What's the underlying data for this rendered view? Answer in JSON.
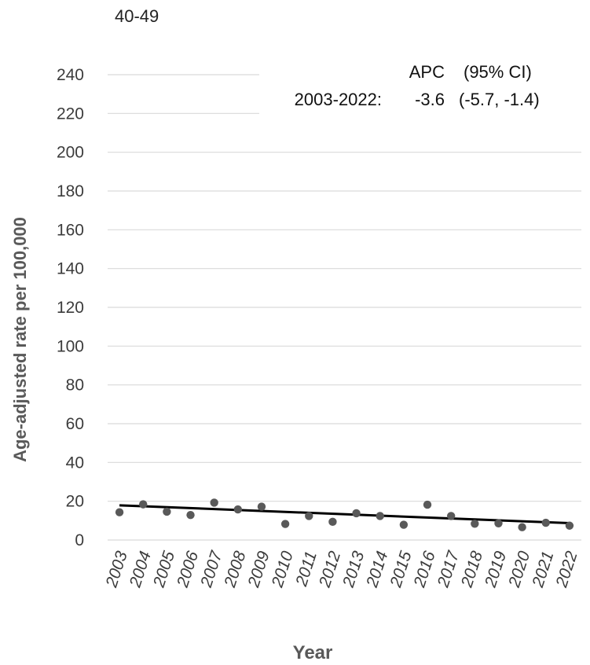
{
  "panel_label": "40-49",
  "chart_data": {
    "type": "scatter",
    "ylabel": "Age-adjusted rate per 100,000",
    "xlabel": "Year",
    "ylim": [
      0,
      240
    ],
    "yticks": [
      0,
      20,
      40,
      60,
      80,
      100,
      120,
      140,
      160,
      180,
      200,
      220,
      240
    ],
    "grid": true,
    "x": [
      "2003",
      "2004",
      "2005",
      "2006",
      "2007",
      "2008",
      "2009",
      "2010",
      "2011",
      "2012",
      "2013",
      "2014",
      "2015",
      "2016",
      "2017",
      "2018",
      "2019",
      "2020",
      "2021",
      "2022"
    ],
    "series": [
      {
        "values": [
          14.3,
          18.4,
          14.6,
          12.9,
          19.3,
          15.8,
          17.2,
          8.3,
          12.4,
          9.4,
          13.8,
          12.4,
          7.9,
          18.2,
          12.4,
          8.4,
          8.6,
          6.6,
          8.9,
          7.4
        ]
      }
    ],
    "trend": {
      "start": 17.9,
      "end": 8.7,
      "color": "#000000"
    },
    "marker_color": "#595959",
    "annotation": {
      "header_apc": "APC",
      "header_ci": "(95% CI)",
      "period": "2003-2022:",
      "apc": "-3.6",
      "ci": "(-5.7, -1.4)"
    }
  }
}
